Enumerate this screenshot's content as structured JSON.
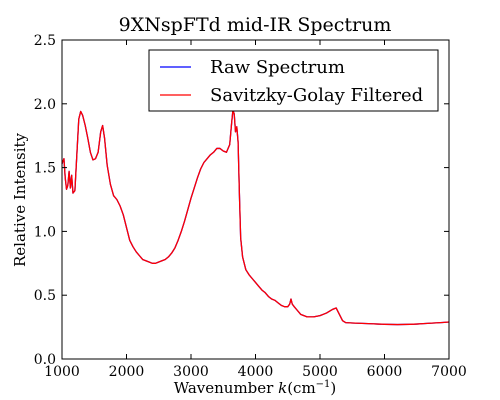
{
  "chart_data": {
    "type": "line",
    "title": "9XNspFTd mid-IR Spectrum",
    "xlabel_text": "Wavenumber ",
    "xlabel_var": "k",
    "xlabel_unit_base": "(cm",
    "xlabel_unit_exp": "−1",
    "xlabel_unit_close": ")",
    "ylabel": "Relative Intensity",
    "xlim": [
      1000,
      7000
    ],
    "ylim": [
      0.0,
      2.5
    ],
    "xticks": [
      1000,
      2000,
      3000,
      4000,
      5000,
      6000,
      7000
    ],
    "yticks": [
      0.0,
      0.5,
      1.0,
      1.5,
      2.0,
      2.5
    ],
    "xtick_labels": [
      "1000",
      "2000",
      "3000",
      "4000",
      "5000",
      "6000",
      "7000"
    ],
    "ytick_labels": [
      "0.0",
      "0.5",
      "1.0",
      "1.5",
      "2.0",
      "2.5"
    ],
    "grid": false,
    "legend_position": "top-right",
    "series": [
      {
        "name": "Raw Spectrum",
        "color": "#0000ff",
        "points": [
          [
            1000,
            1.53
          ],
          [
            1030,
            1.57
          ],
          [
            1050,
            1.42
          ],
          [
            1070,
            1.33
          ],
          [
            1090,
            1.36
          ],
          [
            1110,
            1.47
          ],
          [
            1130,
            1.34
          ],
          [
            1150,
            1.44
          ],
          [
            1170,
            1.3
          ],
          [
            1200,
            1.32
          ],
          [
            1230,
            1.6
          ],
          [
            1260,
            1.88
          ],
          [
            1290,
            1.94
          ],
          [
            1320,
            1.91
          ],
          [
            1360,
            1.83
          ],
          [
            1400,
            1.73
          ],
          [
            1440,
            1.62
          ],
          [
            1480,
            1.56
          ],
          [
            1520,
            1.57
          ],
          [
            1560,
            1.62
          ],
          [
            1600,
            1.78
          ],
          [
            1630,
            1.83
          ],
          [
            1660,
            1.73
          ],
          [
            1700,
            1.52
          ],
          [
            1750,
            1.37
          ],
          [
            1800,
            1.28
          ],
          [
            1850,
            1.25
          ],
          [
            1900,
            1.2
          ],
          [
            1950,
            1.13
          ],
          [
            2000,
            1.03
          ],
          [
            2050,
            0.93
          ],
          [
            2100,
            0.88
          ],
          [
            2150,
            0.84
          ],
          [
            2200,
            0.81
          ],
          [
            2250,
            0.78
          ],
          [
            2300,
            0.77
          ],
          [
            2350,
            0.76
          ],
          [
            2400,
            0.75
          ],
          [
            2450,
            0.75
          ],
          [
            2500,
            0.76
          ],
          [
            2550,
            0.77
          ],
          [
            2600,
            0.78
          ],
          [
            2650,
            0.8
          ],
          [
            2700,
            0.83
          ],
          [
            2750,
            0.87
          ],
          [
            2800,
            0.93
          ],
          [
            2850,
            1.0
          ],
          [
            2900,
            1.08
          ],
          [
            2950,
            1.17
          ],
          [
            3000,
            1.26
          ],
          [
            3050,
            1.34
          ],
          [
            3100,
            1.42
          ],
          [
            3150,
            1.49
          ],
          [
            3200,
            1.54
          ],
          [
            3250,
            1.57
          ],
          [
            3300,
            1.6
          ],
          [
            3350,
            1.62
          ],
          [
            3400,
            1.65
          ],
          [
            3450,
            1.65
          ],
          [
            3500,
            1.63
          ],
          [
            3550,
            1.62
          ],
          [
            3600,
            1.68
          ],
          [
            3630,
            1.85
          ],
          [
            3650,
            1.95
          ],
          [
            3670,
            1.92
          ],
          [
            3690,
            1.78
          ],
          [
            3710,
            1.82
          ],
          [
            3730,
            1.7
          ],
          [
            3750,
            1.3
          ],
          [
            3770,
            0.95
          ],
          [
            3800,
            0.8
          ],
          [
            3850,
            0.7
          ],
          [
            3900,
            0.66
          ],
          [
            3950,
            0.63
          ],
          [
            4000,
            0.6
          ],
          [
            4050,
            0.57
          ],
          [
            4100,
            0.54
          ],
          [
            4150,
            0.52
          ],
          [
            4200,
            0.49
          ],
          [
            4250,
            0.47
          ],
          [
            4300,
            0.46
          ],
          [
            4350,
            0.44
          ],
          [
            4400,
            0.42
          ],
          [
            4450,
            0.41
          ],
          [
            4500,
            0.41
          ],
          [
            4530,
            0.43
          ],
          [
            4550,
            0.47
          ],
          [
            4570,
            0.43
          ],
          [
            4600,
            0.41
          ],
          [
            4650,
            0.38
          ],
          [
            4700,
            0.35
          ],
          [
            4750,
            0.34
          ],
          [
            4800,
            0.33
          ],
          [
            4900,
            0.33
          ],
          [
            5000,
            0.34
          ],
          [
            5100,
            0.36
          ],
          [
            5200,
            0.39
          ],
          [
            5250,
            0.4
          ],
          [
            5300,
            0.35
          ],
          [
            5350,
            0.3
          ],
          [
            5400,
            0.285
          ],
          [
            5500,
            0.282
          ],
          [
            5600,
            0.28
          ],
          [
            5700,
            0.278
          ],
          [
            5800,
            0.276
          ],
          [
            5900,
            0.274
          ],
          [
            6000,
            0.272
          ],
          [
            6100,
            0.271
          ],
          [
            6200,
            0.27
          ],
          [
            6300,
            0.271
          ],
          [
            6400,
            0.272
          ],
          [
            6500,
            0.274
          ],
          [
            6600,
            0.277
          ],
          [
            6700,
            0.28
          ],
          [
            6800,
            0.283
          ],
          [
            6900,
            0.286
          ],
          [
            7000,
            0.29
          ]
        ]
      },
      {
        "name": "Savitzky-Golay Filtered",
        "color": "#ff0000",
        "points": [
          [
            1000,
            1.53
          ],
          [
            1030,
            1.57
          ],
          [
            1050,
            1.42
          ],
          [
            1070,
            1.33
          ],
          [
            1090,
            1.36
          ],
          [
            1110,
            1.47
          ],
          [
            1130,
            1.34
          ],
          [
            1150,
            1.44
          ],
          [
            1170,
            1.3
          ],
          [
            1200,
            1.32
          ],
          [
            1230,
            1.6
          ],
          [
            1260,
            1.88
          ],
          [
            1290,
            1.94
          ],
          [
            1320,
            1.91
          ],
          [
            1360,
            1.83
          ],
          [
            1400,
            1.73
          ],
          [
            1440,
            1.62
          ],
          [
            1480,
            1.56
          ],
          [
            1520,
            1.57
          ],
          [
            1560,
            1.62
          ],
          [
            1600,
            1.78
          ],
          [
            1630,
            1.83
          ],
          [
            1660,
            1.73
          ],
          [
            1700,
            1.52
          ],
          [
            1750,
            1.37
          ],
          [
            1800,
            1.28
          ],
          [
            1850,
            1.25
          ],
          [
            1900,
            1.2
          ],
          [
            1950,
            1.13
          ],
          [
            2000,
            1.03
          ],
          [
            2050,
            0.93
          ],
          [
            2100,
            0.88
          ],
          [
            2150,
            0.84
          ],
          [
            2200,
            0.81
          ],
          [
            2250,
            0.78
          ],
          [
            2300,
            0.77
          ],
          [
            2350,
            0.76
          ],
          [
            2400,
            0.75
          ],
          [
            2450,
            0.75
          ],
          [
            2500,
            0.76
          ],
          [
            2550,
            0.77
          ],
          [
            2600,
            0.78
          ],
          [
            2650,
            0.8
          ],
          [
            2700,
            0.83
          ],
          [
            2750,
            0.87
          ],
          [
            2800,
            0.93
          ],
          [
            2850,
            1.0
          ],
          [
            2900,
            1.08
          ],
          [
            2950,
            1.17
          ],
          [
            3000,
            1.26
          ],
          [
            3050,
            1.34
          ],
          [
            3100,
            1.42
          ],
          [
            3150,
            1.49
          ],
          [
            3200,
            1.54
          ],
          [
            3250,
            1.57
          ],
          [
            3300,
            1.6
          ],
          [
            3350,
            1.62
          ],
          [
            3400,
            1.65
          ],
          [
            3450,
            1.65
          ],
          [
            3500,
            1.63
          ],
          [
            3550,
            1.62
          ],
          [
            3600,
            1.68
          ],
          [
            3630,
            1.85
          ],
          [
            3650,
            1.95
          ],
          [
            3670,
            1.92
          ],
          [
            3690,
            1.78
          ],
          [
            3710,
            1.82
          ],
          [
            3730,
            1.7
          ],
          [
            3750,
            1.3
          ],
          [
            3770,
            0.95
          ],
          [
            3800,
            0.8
          ],
          [
            3850,
            0.7
          ],
          [
            3900,
            0.66
          ],
          [
            3950,
            0.63
          ],
          [
            4000,
            0.6
          ],
          [
            4050,
            0.57
          ],
          [
            4100,
            0.54
          ],
          [
            4150,
            0.52
          ],
          [
            4200,
            0.49
          ],
          [
            4250,
            0.47
          ],
          [
            4300,
            0.46
          ],
          [
            4350,
            0.44
          ],
          [
            4400,
            0.42
          ],
          [
            4450,
            0.41
          ],
          [
            4500,
            0.41
          ],
          [
            4530,
            0.43
          ],
          [
            4550,
            0.47
          ],
          [
            4570,
            0.43
          ],
          [
            4600,
            0.41
          ],
          [
            4650,
            0.38
          ],
          [
            4700,
            0.35
          ],
          [
            4750,
            0.34
          ],
          [
            4800,
            0.33
          ],
          [
            4900,
            0.33
          ],
          [
            5000,
            0.34
          ],
          [
            5100,
            0.36
          ],
          [
            5200,
            0.39
          ],
          [
            5250,
            0.4
          ],
          [
            5300,
            0.35
          ],
          [
            5350,
            0.3
          ],
          [
            5400,
            0.285
          ],
          [
            5500,
            0.282
          ],
          [
            5600,
            0.28
          ],
          [
            5700,
            0.278
          ],
          [
            5800,
            0.276
          ],
          [
            5900,
            0.274
          ],
          [
            6000,
            0.272
          ],
          [
            6100,
            0.271
          ],
          [
            6200,
            0.27
          ],
          [
            6300,
            0.271
          ],
          [
            6400,
            0.272
          ],
          [
            6500,
            0.274
          ],
          [
            6600,
            0.277
          ],
          [
            6700,
            0.28
          ],
          [
            6800,
            0.283
          ],
          [
            6900,
            0.286
          ],
          [
            7000,
            0.29
          ]
        ]
      }
    ]
  }
}
